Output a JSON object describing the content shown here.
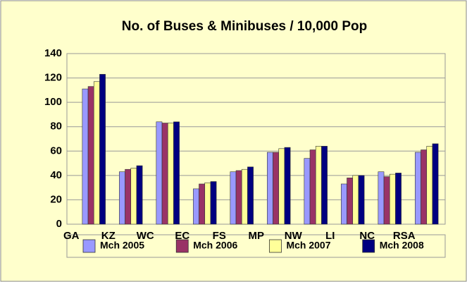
{
  "chart_data": {
    "type": "bar",
    "title": "No. of Buses & Minibuses / 10,000 Pop",
    "categories": [
      "GA",
      "KZ",
      "WC",
      "EC",
      "FS",
      "MP",
      "NW",
      "LI",
      "NC",
      "RSA"
    ],
    "series": [
      {
        "name": "Mch 2005",
        "color": "#9999ff",
        "values": [
          111,
          43,
          84,
          29,
          43,
          59,
          54,
          33,
          43,
          59
        ]
      },
      {
        "name": "Mch 2006",
        "color": "#993366",
        "values": [
          113,
          45,
          83,
          33,
          44,
          59,
          61,
          38,
          39,
          61
        ]
      },
      {
        "name": "Mch 2007",
        "color": "#ffff99",
        "values": [
          117,
          46,
          83,
          34,
          45,
          62,
          64,
          40,
          41,
          64
        ]
      },
      {
        "name": "Mch 2008",
        "color": "#000080",
        "values": [
          123,
          48,
          84,
          35,
          47,
          63,
          64,
          40,
          42,
          66
        ]
      }
    ],
    "ylim": [
      0,
      140
    ],
    "yticks": [
      0,
      20,
      40,
      60,
      80,
      100,
      120,
      140
    ],
    "grid": true,
    "legend": "bottom"
  }
}
